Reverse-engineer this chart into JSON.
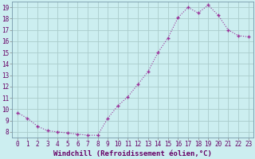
{
  "x": [
    0,
    1,
    2,
    3,
    4,
    5,
    6,
    7,
    8,
    9,
    10,
    11,
    12,
    13,
    14,
    15,
    16,
    17,
    18,
    19,
    20,
    21,
    22,
    23
  ],
  "y": [
    9.7,
    9.2,
    8.5,
    8.1,
    8.0,
    7.9,
    7.8,
    7.7,
    7.7,
    9.2,
    10.3,
    11.1,
    12.2,
    13.3,
    15.0,
    16.3,
    18.1,
    19.0,
    18.5,
    19.2,
    18.3,
    17.0,
    16.5,
    16.4
  ],
  "xlabel": "Windchill (Refroidissement éolien,°C)",
  "line_color": "#993399",
  "marker_color": "#993399",
  "bg_color": "#cceef0",
  "grid_color": "#aacccc",
  "ylim": [
    7.5,
    19.5
  ],
  "yticks": [
    8,
    9,
    10,
    11,
    12,
    13,
    14,
    15,
    16,
    17,
    18,
    19
  ],
  "xtick_labels": [
    "0",
    "1",
    "2",
    "3",
    "4",
    "5",
    "6",
    "7",
    "8",
    "9",
    "10",
    "11",
    "12",
    "13",
    "14",
    "15",
    "16",
    "17",
    "18",
    "19",
    "20",
    "21",
    "22",
    "23"
  ],
  "tick_fontsize": 5.5,
  "xlabel_fontsize": 6.5
}
